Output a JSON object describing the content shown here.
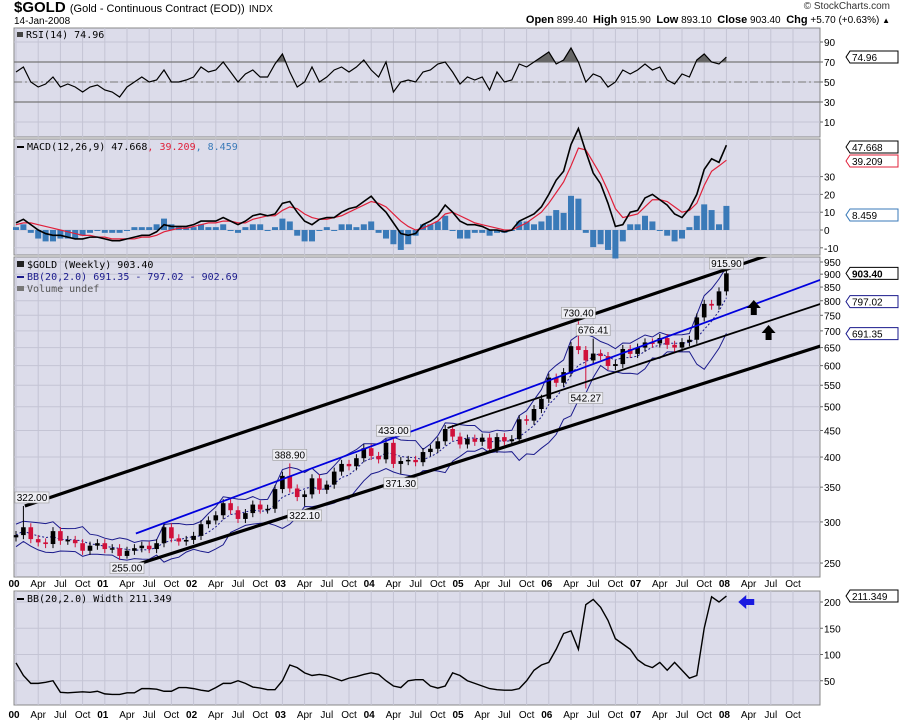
{
  "header": {
    "symbol": "$GOLD",
    "description": "(Gold - Continuous Contract (EOD))",
    "exchange": "INDX",
    "date": "14-Jan-2008",
    "copyright": "© StockCharts.com",
    "open_label": "Open",
    "open": "899.40",
    "high_label": "High",
    "high": "915.90",
    "low_label": "Low",
    "low": "893.10",
    "close_label": "Close",
    "close": "903.40",
    "chg_label": "Chg",
    "chg": "+5.70 (+0.63%)",
    "chg_arrow": "▲"
  },
  "colors": {
    "panel_bg": "#dcdcea",
    "up": "#000000",
    "down": "#d0103a",
    "bb": "#1a1a8c",
    "trend_blue": "#0000dd",
    "signal": "#e0203a",
    "hist": "#3a7ab8"
  },
  "legends": {
    "rsi": "RSI(14) 74.96",
    "macd_name": "MACD(12,26,9) 47.668",
    "macd_signal": ", 39.209",
    "macd_hist": ", 8.459",
    "price": "$GOLD (Weekly) 903.40",
    "bb": "BB(20,2.0) 691.35 - 797.02 - 902.69",
    "volume": "Volume undef",
    "bbw": "BB(20,2.0) Width 211.349"
  },
  "tags": {
    "rsi": "74.96",
    "macd": "47.668",
    "signal": "39.209",
    "hist": "8.459",
    "price": "903.40",
    "bb_mid": "797.02",
    "bb_low": "691.35",
    "bbw": "211.349"
  },
  "chart_data": {
    "type": "line",
    "title": "$GOLD (Gold - Continuous Contract (EOD)) INDX",
    "x_start": "Jan 2000",
    "x_step": "month",
    "x_tick_labels": [
      "00",
      "Apr",
      "Jul",
      "Oct",
      "01",
      "Apr",
      "Jul",
      "Oct",
      "02",
      "Apr",
      "Jul",
      "Oct",
      "03",
      "Apr",
      "Jul",
      "Oct",
      "04",
      "Apr",
      "Jul",
      "Oct",
      "05",
      "Apr",
      "Jul",
      "Oct",
      "06",
      "Apr",
      "Jul",
      "Oct",
      "07",
      "Apr",
      "Jul",
      "Oct",
      "08",
      "Apr",
      "Jul",
      "Oct"
    ],
    "panels": {
      "rsi": {
        "yticks": [
          "10",
          "30",
          "50",
          "70",
          "90"
        ],
        "ylim": [
          0,
          100
        ],
        "values": [
          60,
          65,
          50,
          45,
          48,
          55,
          45,
          48,
          45,
          40,
          45,
          47,
          42,
          40,
          35,
          45,
          50,
          55,
          50,
          52,
          62,
          50,
          50,
          52,
          55,
          65,
          60,
          62,
          70,
          60,
          50,
          58,
          62,
          55,
          55,
          68,
          78,
          60,
          45,
          50,
          65,
          50,
          55,
          62,
          65,
          60,
          65,
          72,
          62,
          55,
          70,
          40,
          50,
          52,
          50,
          60,
          62,
          68,
          70,
          60,
          48,
          55,
          52,
          55,
          42,
          60,
          50,
          52,
          68,
          65,
          70,
          75,
          80,
          68,
          72,
          84,
          70,
          50,
          58,
          55,
          45,
          50,
          62,
          58,
          62,
          68,
          62,
          65,
          52,
          48,
          58,
          55,
          72,
          78,
          70,
          68,
          74.96
        ]
      },
      "macd": {
        "yticks": [
          "-10",
          "0",
          "10",
          "20",
          "30"
        ],
        "ylim": [
          -15,
          52
        ],
        "macd": [
          4,
          6,
          3,
          0,
          -2,
          -3,
          -3,
          -4,
          -5,
          -5,
          -4,
          -4,
          -5,
          -6,
          -6,
          -5,
          -4,
          -3,
          -3,
          -1,
          3,
          2,
          2,
          2,
          3,
          5,
          5,
          5,
          7,
          5,
          3,
          5,
          8,
          9,
          8,
          9,
          15,
          16,
          10,
          5,
          3,
          6,
          7,
          7,
          10,
          12,
          13,
          16,
          19,
          14,
          10,
          4,
          -2,
          -3,
          -2,
          3,
          5,
          8,
          14,
          10,
          5,
          3,
          3,
          2,
          0,
          0,
          -1,
          0,
          5,
          7,
          9,
          13,
          20,
          28,
          33,
          48,
          57,
          44,
          32,
          26,
          15,
          2,
          3,
          10,
          11,
          18,
          20,
          17,
          14,
          9,
          7,
          12,
          20,
          34,
          40,
          38,
          47.668
        ],
        "signal": [
          3,
          4,
          4,
          3,
          2,
          1,
          0,
          -1,
          -2,
          -3,
          -3,
          -4,
          -4,
          -5,
          -5,
          -5,
          -5,
          -4,
          -4,
          -3,
          -1,
          0,
          1,
          1,
          2,
          3,
          4,
          4,
          5,
          5,
          4,
          4,
          6,
          7,
          8,
          8,
          11,
          13,
          12,
          9,
          7,
          6,
          6,
          7,
          8,
          10,
          12,
          14,
          16,
          15,
          13,
          9,
          5,
          2,
          0,
          1,
          3,
          5,
          9,
          10,
          8,
          6,
          4,
          3,
          2,
          1,
          0,
          0,
          2,
          4,
          7,
          10,
          15,
          21,
          27,
          36,
          46,
          45,
          38,
          31,
          22,
          12,
          7,
          8,
          9,
          13,
          17,
          17,
          16,
          13,
          10,
          11,
          15,
          25,
          33,
          36,
          39.209
        ]
      },
      "price": {
        "scale": "log",
        "yticks": [
          "250",
          "300",
          "350",
          "400",
          "450",
          "500",
          "550",
          "600",
          "650",
          "700",
          "750",
          "800",
          "850",
          "900",
          "950"
        ],
        "ylim": [
          235,
          1000
        ],
        "close": [
          283,
          293,
          278,
          274,
          272,
          288,
          276,
          277,
          273,
          264,
          270,
          273,
          266,
          267,
          258,
          264,
          267,
          270,
          266,
          273,
          293,
          279,
          275,
          277,
          282,
          297,
          302,
          309,
          326,
          316,
          304,
          312,
          324,
          317,
          318,
          347,
          368,
          348,
          335,
          339,
          364,
          346,
          354,
          375,
          388,
          384,
          398,
          416,
          402,
          396,
          426,
          388,
          393,
          395,
          391,
          409,
          415,
          429,
          453,
          438,
          423,
          434,
          428,
          436,
          415,
          437,
          429,
          433,
          473,
          470,
          495,
          518,
          569,
          556,
          583,
          654,
          643,
          614,
          633,
          626,
          599,
          604,
          646,
          632,
          650,
          665,
          662,
          678,
          658,
          650,
          666,
          673,
          743,
          789,
          783,
          834,
          903.4
        ],
        "annotations": [
          {
            "index": 1,
            "kind": "high",
            "value": 322.0,
            "label": "322.00"
          },
          {
            "index": 15,
            "kind": "low",
            "value": 255.0,
            "label": "255.00"
          },
          {
            "index": 37,
            "kind": "high",
            "value": 388.9,
            "label": "388.90"
          },
          {
            "index": 39,
            "kind": "low",
            "value": 322.1,
            "label": "322.10"
          },
          {
            "index": 51,
            "kind": "high",
            "value": 433.0,
            "label": "433.00"
          },
          {
            "index": 52,
            "kind": "low",
            "value": 371.3,
            "label": "371.30"
          },
          {
            "index": 76,
            "kind": "high",
            "value": 730.4,
            "label": "730.40"
          },
          {
            "index": 77,
            "kind": "low",
            "value": 542.27,
            "label": "542.27"
          },
          {
            "index": 78,
            "kind": "high",
            "value": 676.41,
            "label": "676.41"
          },
          {
            "index": 96,
            "kind": "high",
            "value": 915.9,
            "label": "915.90"
          }
        ],
        "trendlines": [
          {
            "name": "upper-channel-top",
            "color": "black",
            "from": [
              2000.1,
              322
            ],
            "to": [
              2009.41,
              1109
            ]
          },
          {
            "name": "upper-channel-bottom",
            "color": "blue",
            "from": [
              2001.35,
              285
            ],
            "to": [
              2009.41,
              924
            ]
          },
          {
            "name": "lower-channel-top",
            "color": "black",
            "from": [
              2004.86,
              455
            ],
            "to": [
              2009.41,
              826
            ]
          },
          {
            "name": "lower-channel-bottom",
            "color": "black",
            "from": [
              2001.35,
              248
            ],
            "to": [
              2009.41,
              684
            ]
          }
        ]
      },
      "bb_width": {
        "yticks": [
          "50",
          "100",
          "150",
          "200"
        ],
        "ylim": [
          0,
          220
        ],
        "values": [
          84,
          60,
          45,
          45,
          47,
          50,
          28,
          27,
          28,
          29,
          28,
          30,
          25,
          24,
          24,
          27,
          27,
          35,
          35,
          34,
          30,
          30,
          37,
          37,
          35,
          32,
          30,
          37,
          45,
          45,
          50,
          45,
          38,
          36,
          33,
          33,
          50,
          80,
          75,
          65,
          60,
          62,
          60,
          55,
          50,
          55,
          58,
          62,
          65,
          62,
          50,
          40,
          37,
          50,
          52,
          52,
          40,
          36,
          40,
          65,
          60,
          50,
          45,
          40,
          35,
          33,
          32,
          32,
          35,
          50,
          70,
          80,
          85,
          110,
          140,
          145,
          110,
          195,
          205,
          190,
          165,
          130,
          120,
          110,
          90,
          80,
          75,
          85,
          70,
          85,
          70,
          55,
          60,
          150,
          210,
          200,
          211.349
        ]
      }
    }
  }
}
